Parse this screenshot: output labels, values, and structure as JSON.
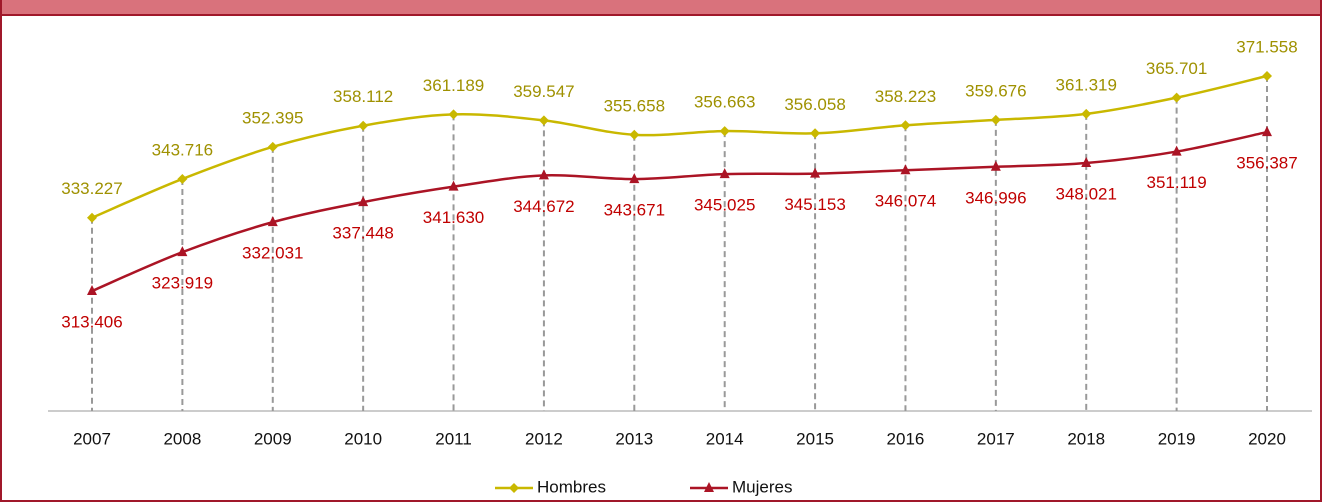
{
  "chart_data": {
    "type": "line",
    "categories": [
      "2007",
      "2008",
      "2009",
      "2010",
      "2011",
      "2012",
      "2013",
      "2014",
      "2015",
      "2016",
      "2017",
      "2018",
      "2019",
      "2020"
    ],
    "series": [
      {
        "name": "Hombres",
        "color": "#c9b800",
        "label_color": "#9f9100",
        "values": [
          333227,
          343716,
          352395,
          358112,
          361189,
          359547,
          355658,
          356663,
          356058,
          358223,
          359676,
          361319,
          365701,
          371558
        ],
        "value_labels": [
          "333.227",
          "343.716",
          "352.395",
          "358.112",
          "361.189",
          "359.547",
          "355.658",
          "356.663",
          "356.058",
          "358.223",
          "359.676",
          "361.319",
          "365.701",
          "371.558"
        ]
      },
      {
        "name": "Mujeres",
        "color": "#ab1425",
        "label_color": "#c00000",
        "values": [
          313406,
          323919,
          332031,
          337448,
          341630,
          344672,
          343671,
          345025,
          345153,
          346074,
          346996,
          348021,
          351119,
          356387
        ],
        "value_labels": [
          "313.406",
          "323.919",
          "332.031",
          "337.448",
          "341.630",
          "344.672",
          "343.671",
          "345.025",
          "345.153",
          "346.074",
          "346.996",
          "348.021",
          "351.119",
          "356.387"
        ]
      }
    ],
    "legend": "bottom"
  }
}
